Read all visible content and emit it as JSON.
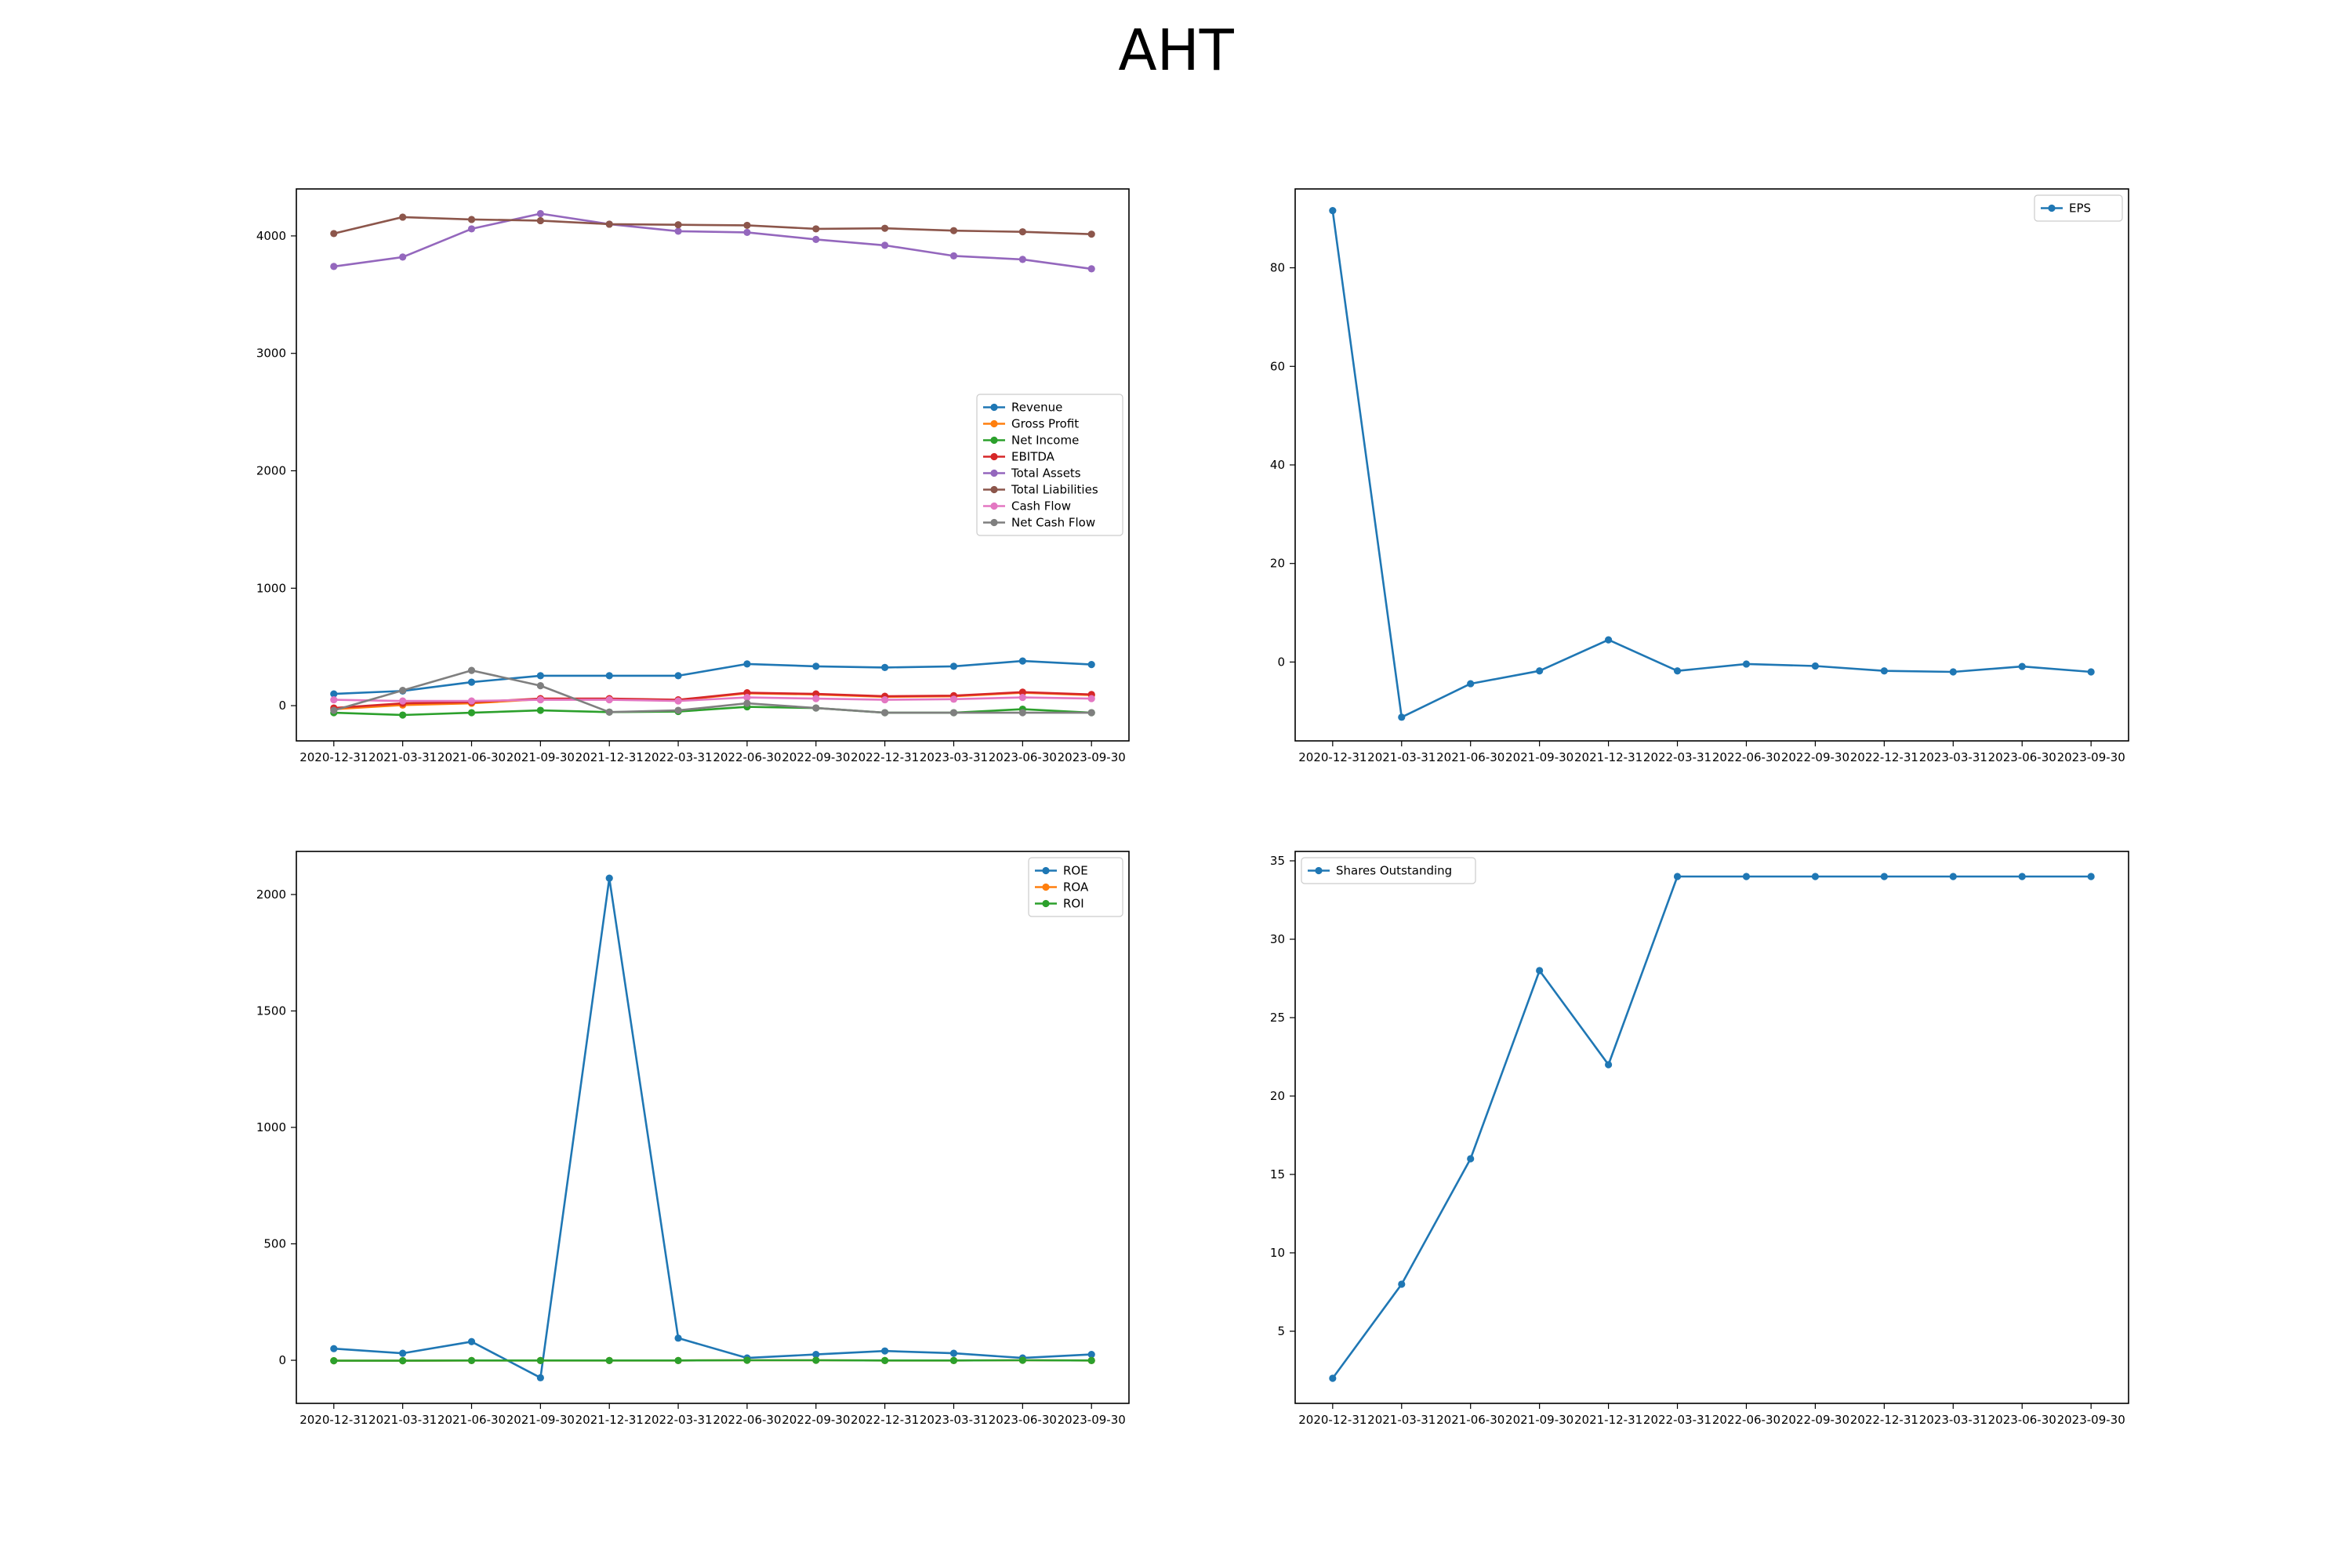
{
  "title": "AHT",
  "chart_data": [
    {
      "type": "line",
      "x": [
        "2020-12-31",
        "2021-03-31",
        "2021-06-30",
        "2021-09-30",
        "2021-12-31",
        "2022-03-31",
        "2022-06-30",
        "2022-09-30",
        "2022-12-31",
        "2023-03-31",
        "2023-06-30",
        "2023-09-30"
      ],
      "ylim": [
        -300,
        4400
      ],
      "yticks": [
        0,
        1000,
        2000,
        3000,
        4000
      ],
      "legend_position": "center-right",
      "series": [
        {
          "name": "Revenue",
          "color": "#1f77b4",
          "values": [
            100,
            125,
            200,
            255,
            255,
            255,
            355,
            335,
            325,
            335,
            380,
            350
          ]
        },
        {
          "name": "Gross Profit",
          "color": "#ff7f0e",
          "values": [
            -30,
            5,
            20,
            55,
            55,
            45,
            105,
            95,
            75,
            80,
            110,
            90
          ]
        },
        {
          "name": "Net Income",
          "color": "#2ca02c",
          "values": [
            -60,
            -80,
            -60,
            -40,
            -55,
            -50,
            -10,
            -20,
            -60,
            -60,
            -30,
            -60
          ]
        },
        {
          "name": "EBITDA",
          "color": "#d62728",
          "values": [
            -20,
            20,
            30,
            60,
            60,
            50,
            110,
            100,
            80,
            85,
            115,
            95
          ]
        },
        {
          "name": "Total Assets",
          "color": "#9467bd",
          "values": [
            3740,
            3820,
            4060,
            4190,
            4100,
            4040,
            4030,
            3970,
            3920,
            3830,
            3800,
            3720
          ]
        },
        {
          "name": "Total Liabilities",
          "color": "#8c564b",
          "values": [
            4020,
            4160,
            4140,
            4130,
            4100,
            4095,
            4090,
            4060,
            4065,
            4045,
            4035,
            4015
          ]
        },
        {
          "name": "Cash Flow",
          "color": "#e377c2",
          "values": [
            50,
            40,
            40,
            50,
            50,
            40,
            70,
            60,
            50,
            55,
            70,
            60
          ]
        },
        {
          "name": "Net Cash Flow",
          "color": "#7f7f7f",
          "values": [
            -40,
            130,
            300,
            170,
            -55,
            -40,
            20,
            -20,
            -60,
            -60,
            -60,
            -60
          ]
        }
      ]
    },
    {
      "type": "line",
      "x": [
        "2020-12-31",
        "2021-03-31",
        "2021-06-30",
        "2021-09-30",
        "2021-12-31",
        "2022-03-31",
        "2022-06-30",
        "2022-09-30",
        "2022-12-31",
        "2023-03-31",
        "2023-06-30",
        "2023-09-30"
      ],
      "ylim": [
        -16,
        96
      ],
      "yticks": [
        0,
        20,
        40,
        60,
        80
      ],
      "legend_position": "top-right",
      "series": [
        {
          "name": "EPS",
          "color": "#1f77b4",
          "values": [
            91.6,
            -11.2,
            -4.4,
            -1.8,
            4.5,
            -1.8,
            -0.4,
            -0.8,
            -1.8,
            -2.0,
            -0.9,
            -2.0
          ]
        }
      ]
    },
    {
      "type": "line",
      "x": [
        "2020-12-31",
        "2021-03-31",
        "2021-06-30",
        "2021-09-30",
        "2021-12-31",
        "2022-03-31",
        "2022-06-30",
        "2022-09-30",
        "2022-12-31",
        "2023-03-31",
        "2023-06-30",
        "2023-09-30"
      ],
      "ylim": [
        -185,
        2185
      ],
      "yticks": [
        0,
        500,
        1000,
        1500,
        2000
      ],
      "legend_position": "top-right",
      "series": [
        {
          "name": "ROE",
          "color": "#1f77b4",
          "values": [
            50,
            30,
            80,
            -75,
            2070,
            95,
            10,
            25,
            40,
            30,
            10,
            25
          ]
        },
        {
          "name": "ROA",
          "color": "#ff7f0e",
          "values": [
            -2,
            -2,
            -1,
            -1,
            -1,
            -1,
            0,
            0,
            -1,
            -1,
            0,
            -1
          ]
        },
        {
          "name": "ROI",
          "color": "#2ca02c",
          "values": [
            -2,
            -2,
            -1,
            -1,
            -1,
            -1,
            0,
            0,
            -1,
            -1,
            0,
            -1
          ]
        }
      ]
    },
    {
      "type": "line",
      "x": [
        "2020-12-31",
        "2021-03-31",
        "2021-06-30",
        "2021-09-30",
        "2021-12-31",
        "2022-03-31",
        "2022-06-30",
        "2022-09-30",
        "2022-12-31",
        "2023-03-31",
        "2023-06-30",
        "2023-09-30"
      ],
      "ylim": [
        0.4,
        35.6
      ],
      "yticks": [
        5,
        10,
        15,
        20,
        25,
        30,
        35
      ],
      "legend_position": "top-left",
      "series": [
        {
          "name": "Shares Outstanding",
          "color": "#1f77b4",
          "values": [
            2,
            8,
            16,
            28,
            22,
            34,
            34,
            34,
            34,
            34,
            34,
            34
          ]
        }
      ]
    }
  ]
}
